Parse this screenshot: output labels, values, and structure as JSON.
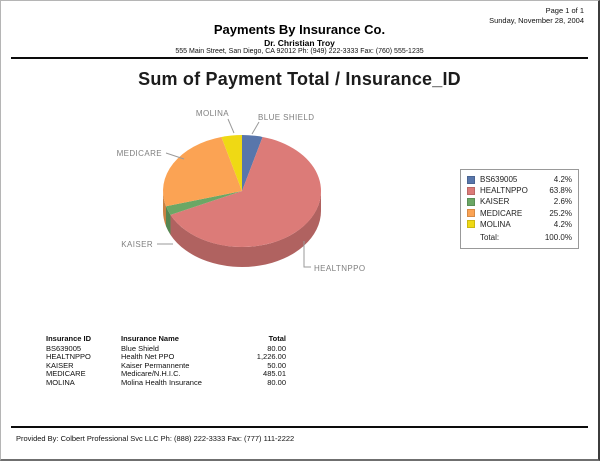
{
  "page": {
    "page_number": "Page 1 of 1",
    "date": "Sunday, November 28, 2004"
  },
  "header": {
    "company": "Payments By Insurance Co.",
    "doctor": "Dr. Christian Troy",
    "address": "555 Main Street, San Diego, CA 92012 Ph: (949) 222-3333 Fax: (760) 555-1235"
  },
  "chart_data": {
    "type": "pie",
    "style": "3d-pie",
    "title": "Sum of Payment Total / Insurance_ID",
    "labels": [
      "BLUE SHIELD",
      "HEALTNPPO",
      "KAISER",
      "MEDICARE",
      "MOLINA"
    ],
    "legend_labels": [
      "BS639005",
      "HEALTNPPO",
      "KAISER",
      "MEDICARE",
      "MOLINA"
    ],
    "values": [
      80.0,
      1226.0,
      50.0,
      485.01,
      80.0
    ],
    "values_percent": [
      4.2,
      63.8,
      2.6,
      25.2,
      4.2
    ],
    "legend_percent_display": [
      "4.2%",
      "63.8%",
      "2.6%",
      "25.2%",
      "4.2%"
    ],
    "colors": [
      "#5876ab",
      "#dc7b78",
      "#6ba765",
      "#fba354",
      "#efd914"
    ],
    "callout_color": "#9a9a9a",
    "label_color": "#7f7f7f",
    "legend_position": "right",
    "legend_total_label": "Total:",
    "legend_total_value": "100.0%"
  },
  "table": {
    "columns": [
      "Insurance ID",
      "Insurance Name",
      "Total"
    ],
    "rows": [
      [
        "BS639005",
        "Blue Shield",
        "80.00"
      ],
      [
        "HEALTNPPO",
        "Health Net PPO",
        "1,226.00"
      ],
      [
        "KAISER",
        "Kaiser Permannente",
        "50.00"
      ],
      [
        "MEDICARE",
        "Medicare/N.H.I.C.",
        "485.01"
      ],
      [
        "MOLINA",
        "Molina Health Insurance",
        "80.00"
      ]
    ]
  },
  "footer": {
    "provided_by": "Provided By: Colbert Professional Svc LLC Ph: (888) 222-3333 Fax: (777) 111-2222"
  }
}
